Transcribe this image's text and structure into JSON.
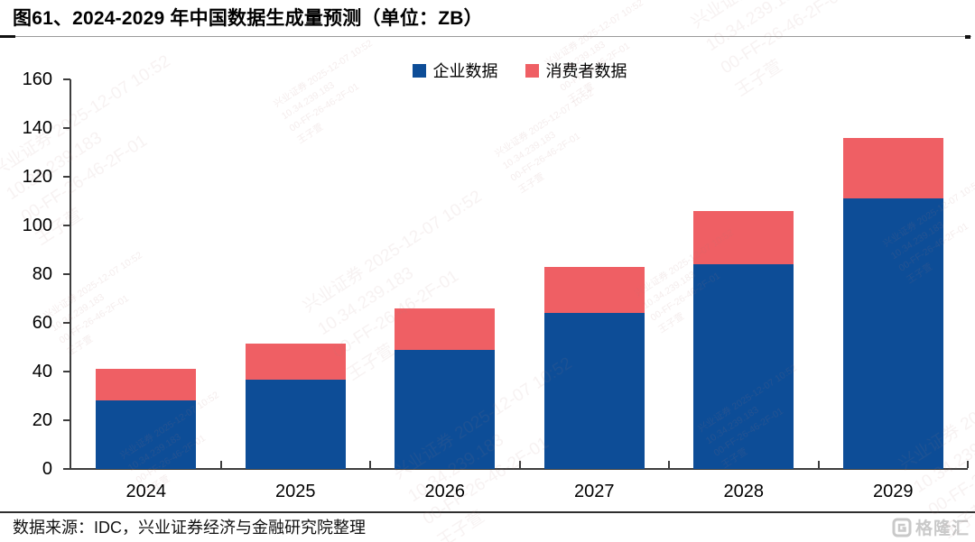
{
  "title": "图61、2024-2029 年中国数据生成量预测（单位：ZB）",
  "source_note": "数据来源：IDC，兴业证券经济与金融研究院整理",
  "logo": {
    "text": "格隆汇"
  },
  "watermark": {
    "lines": [
      "兴业证券  2025-12-07 10:52",
      "10.34.239.183",
      "00-FF-26-46-2F-01",
      "王子萱"
    ]
  },
  "colors": {
    "enterprise_blue": "#0D4D97",
    "consumer_red": "#EF5F64",
    "axis": "#3d3d3d"
  },
  "chart_data": {
    "type": "bar",
    "stacked": true,
    "title": "2024-2029 年中国数据生成量预测",
    "unit": "ZB",
    "categories": [
      "2024",
      "2025",
      "2026",
      "2027",
      "2028",
      "2029"
    ],
    "series": [
      {
        "name": "企业数据",
        "color": "#0D4D97",
        "values": [
          28,
          36.5,
          49,
          64,
          84,
          111
        ]
      },
      {
        "name": "消费者数据",
        "color": "#EF5F64",
        "values": [
          13,
          15,
          17,
          19,
          22,
          25
        ]
      }
    ],
    "totals": [
      41,
      51.5,
      66,
      83,
      106,
      136
    ],
    "xlabel": "",
    "ylabel": "",
    "ylim": [
      0,
      160
    ],
    "ytick_step": 20,
    "grid": false,
    "legend_position": "top-center"
  }
}
